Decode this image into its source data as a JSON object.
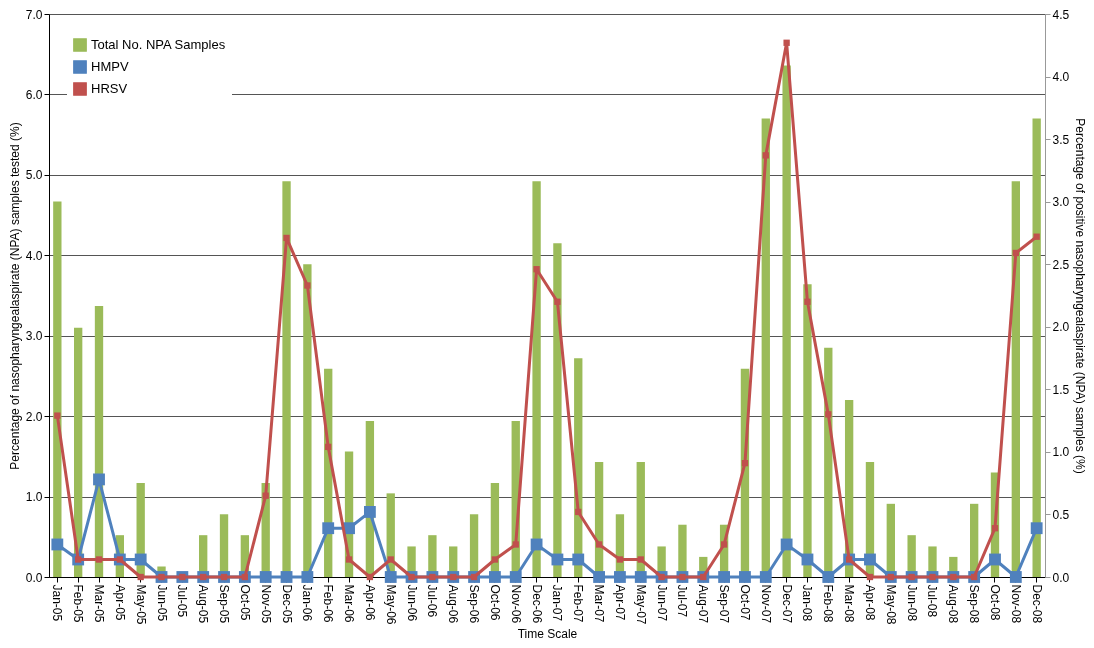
{
  "chart_data": {
    "type": "bar",
    "xlabel": "Time Scale",
    "ylabel": "Percentage of nasopharyngealaspirate (NPA)  samples tested (%)",
    "y2label": "Percentage of positive nasopharyngealaspirate (NPA) samples  (%)",
    "categories": [
      "Jan-05",
      "Feb-05",
      "Mar-05",
      "Apr-05",
      "May-05",
      "Jun-05",
      "Jul-05",
      "Aug-05",
      "Sep-05",
      "Oct-05",
      "Nov-05",
      "Dec-05",
      "Jan-06",
      "Feb-06",
      "Mar-06",
      "Apr-06",
      "May-06",
      "Jun-06",
      "Jul-06",
      "Aug-06",
      "Sep-06",
      "Oct-06",
      "Nov-06",
      "Dec-06",
      "Jan-07",
      "Feb-07",
      "Mar-07",
      "Apr-07",
      "May-07",
      "Jun-07",
      "Jul-07",
      "Aug-07",
      "Sep-07",
      "Oct-07",
      "Nov-07",
      "Dec-07",
      "Jan-08",
      "Feb-08",
      "Mar-08",
      "Apr-08",
      "May-08",
      "Jun-08",
      "Jul-08",
      "Aug-08",
      "Sep-08",
      "Oct-08",
      "Nov-08",
      "Dec-08"
    ],
    "series": [
      {
        "name": "Total No. NPA Samples",
        "color": "#9bbb59",
        "values": [
          4.67,
          3.1,
          3.37,
          0.52,
          1.17,
          0.13,
          0,
          0.52,
          0.78,
          0.52,
          1.17,
          4.92,
          3.89,
          2.59,
          1.56,
          1.94,
          1.04,
          0.38,
          0.52,
          0.38,
          0.78,
          1.17,
          1.94,
          4.92,
          4.15,
          2.72,
          1.43,
          0.78,
          1.43,
          0.38,
          0.65,
          0.25,
          0.65,
          2.59,
          5.7,
          6.36,
          3.64,
          2.85,
          2.2,
          1.43,
          0.91,
          0.52,
          0.38,
          0.25,
          0.91,
          1.3,
          4.92,
          5.7
        ]
      },
      {
        "name": "HMPV",
        "type": "line",
        "axis": "y2",
        "marker": "square",
        "color": "#4f81bd",
        "values": [
          0.26,
          0.14,
          0.78,
          0.14,
          0.14,
          0,
          0,
          0,
          0,
          0,
          0,
          0,
          0,
          0.39,
          0.39,
          0.52,
          0,
          0,
          0,
          0,
          0,
          0,
          0,
          0.26,
          0.14,
          0.14,
          0,
          0,
          0,
          0,
          0,
          0,
          0,
          0,
          0,
          0.26,
          0.14,
          0,
          0.14,
          0.14,
          0,
          0,
          0,
          0,
          0,
          0.14,
          0,
          0.39
        ]
      },
      {
        "name": "HRSV",
        "type": "line",
        "axis": "y2",
        "marker": "square",
        "color": "#c0504d",
        "values": [
          1.29,
          0.14,
          0.14,
          0.14,
          0,
          0,
          0,
          0,
          0,
          0,
          0.65,
          2.71,
          2.33,
          1.04,
          0.14,
          0,
          0.14,
          0,
          0,
          0,
          0,
          0.14,
          0.26,
          2.46,
          2.2,
          0.52,
          0.26,
          0.14,
          0.14,
          0,
          0,
          0,
          0.26,
          0.91,
          3.37,
          4.27,
          2.2,
          1.3,
          0.14,
          0,
          0,
          0,
          0,
          0,
          0,
          0.39,
          2.59,
          2.72
        ]
      }
    ],
    "ylim": [
      0,
      7
    ],
    "yticks": [
      {
        "value": 0,
        "label": "0.0"
      },
      {
        "value": 1,
        "label": "1.0"
      },
      {
        "value": 2,
        "label": "2.0"
      },
      {
        "value": 3,
        "label": "3.0"
      },
      {
        "value": 4,
        "label": "4.0"
      },
      {
        "value": 5,
        "label": "5.0"
      },
      {
        "value": 6,
        "label": "6.0"
      },
      {
        "value": 7,
        "label": "7.0"
      }
    ],
    "y2lim": [
      0,
      4.5
    ],
    "y2ticks": [
      {
        "value": 0,
        "label": "0.0"
      },
      {
        "value": 0.5,
        "label": "0.5"
      },
      {
        "value": 1,
        "label": "1.0"
      },
      {
        "value": 1.5,
        "label": "1.5"
      },
      {
        "value": 2,
        "label": "2.0"
      },
      {
        "value": 2.5,
        "label": "2.5"
      },
      {
        "value": 3,
        "label": "3.0"
      },
      {
        "value": 3.5,
        "label": "3.5"
      },
      {
        "value": 4,
        "label": "4.0"
      },
      {
        "value": 4.5,
        "label": "4.5"
      }
    ],
    "grid": "y",
    "legend": "top left"
  }
}
